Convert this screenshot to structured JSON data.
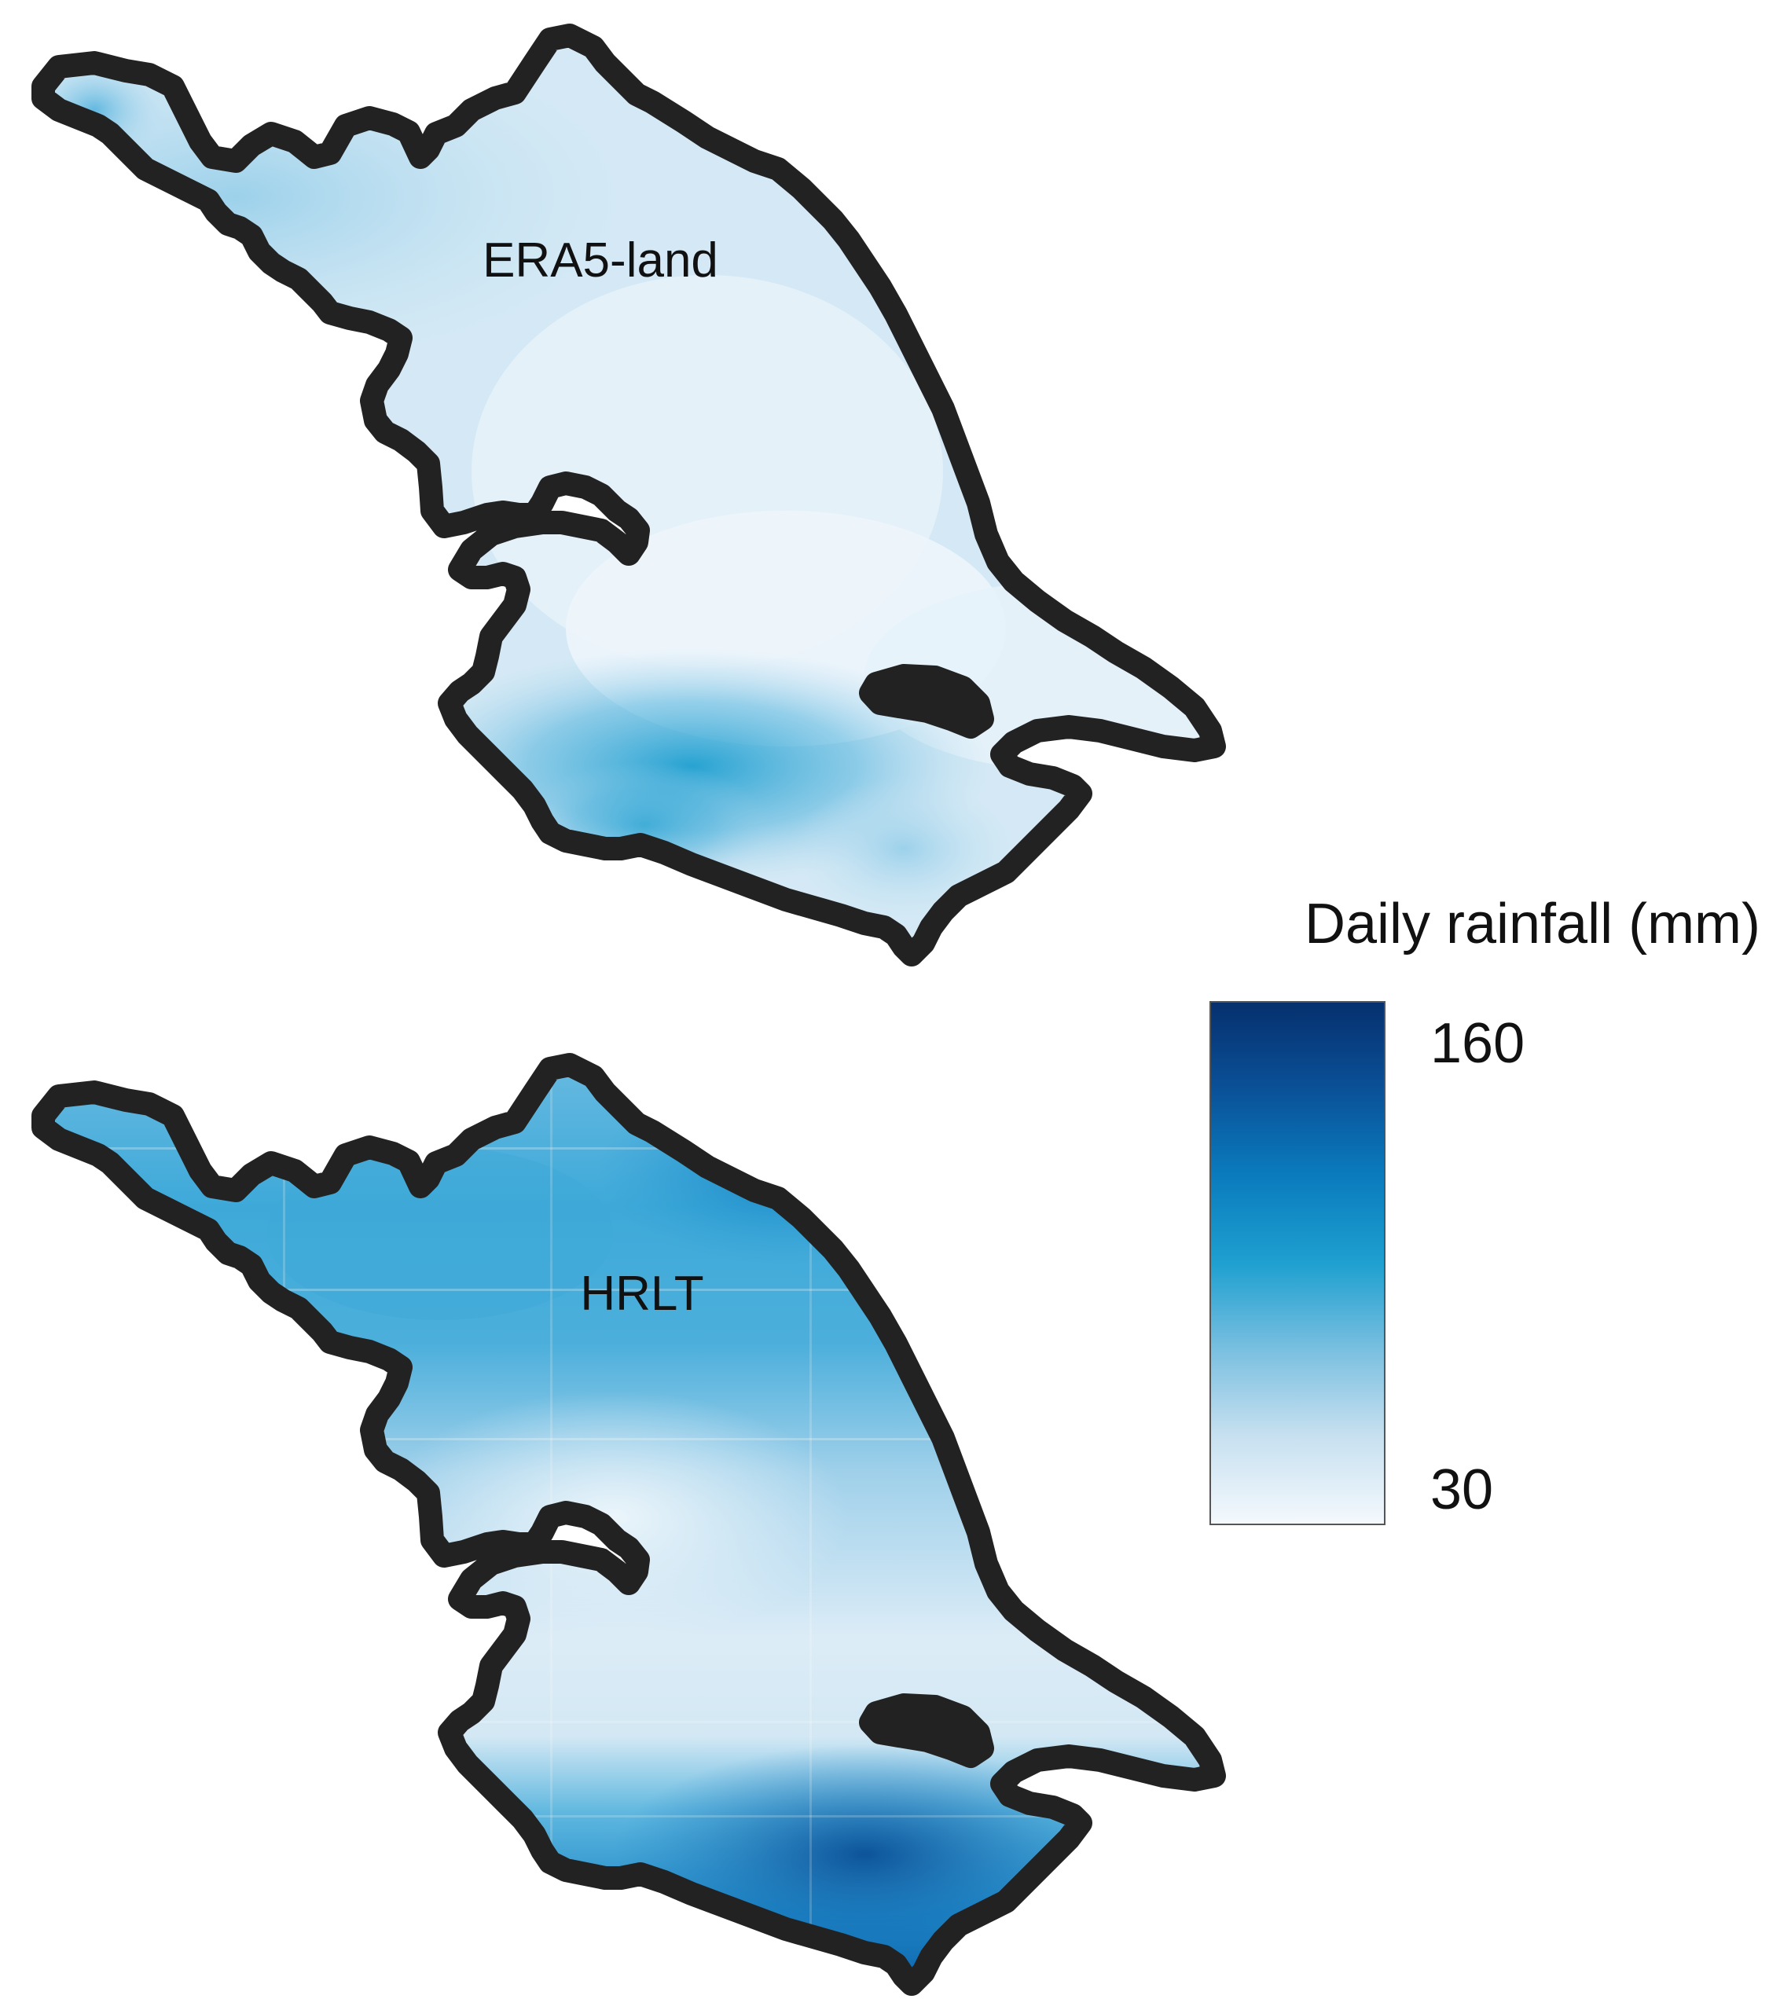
{
  "panels": [
    {
      "id": "era5",
      "label": "ERA5-land"
    },
    {
      "id": "hrlt",
      "label": "HRLT"
    }
  ],
  "legend": {
    "title": "Daily rainfall (mm)",
    "max_label": "160",
    "min_label": "30",
    "value_range": [
      30,
      160
    ],
    "colors": [
      "#f4f9fd",
      "#c7e0f0",
      "#7cc0e0",
      "#1ea0d0",
      "#0a7bbd",
      "#0a4f96",
      "#06306e"
    ]
  },
  "colors": {
    "outline": "#222222",
    "background": "#ffffff"
  }
}
